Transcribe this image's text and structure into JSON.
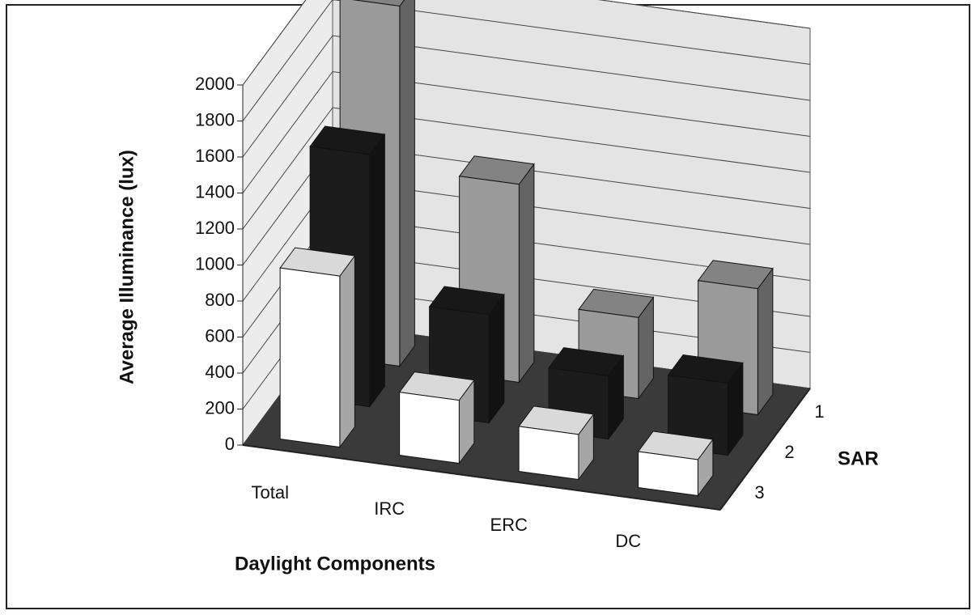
{
  "chart_data": {
    "type": "bar3d",
    "y_label": "Average Illuminance (lux)",
    "x_label": "Daylight Components",
    "z_label": "SAR",
    "categories": [
      "Total",
      "IRC",
      "ERC",
      "DC"
    ],
    "series": [
      {
        "name": "1",
        "color": "#9a9a9a",
        "values": [
          2000,
          1100,
          450,
          700
        ]
      },
      {
        "name": "2",
        "color": "#1c1c1c",
        "values": [
          1400,
          600,
          350,
          400
        ]
      },
      {
        "name": "3",
        "color": "#ffffff",
        "values": [
          950,
          350,
          250,
          200
        ]
      }
    ],
    "ylim": [
      0,
      2000
    ],
    "yticks": [
      0,
      200,
      400,
      600,
      800,
      1000,
      1200,
      1400,
      1600,
      1800,
      2000
    ],
    "grid": true
  }
}
